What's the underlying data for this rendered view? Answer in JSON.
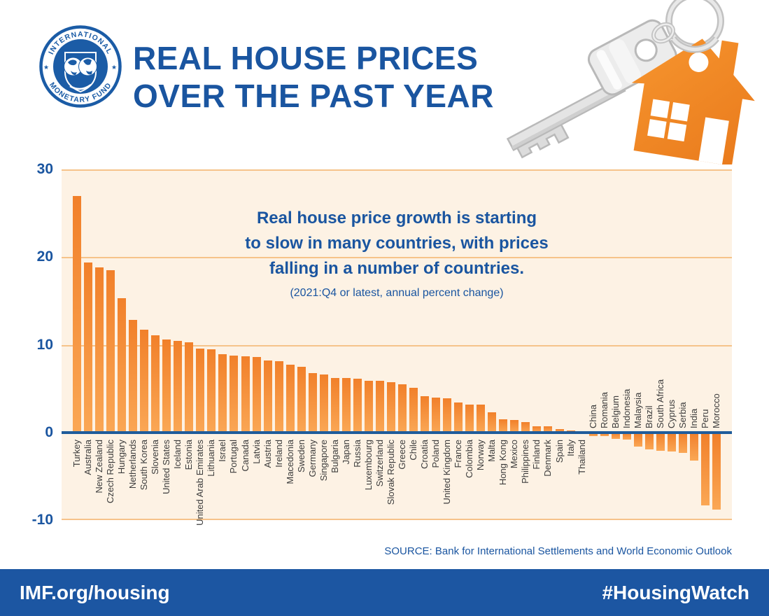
{
  "header": {
    "title_line1": "REAL HOUSE PRICES",
    "title_line2": "OVER THE PAST YEAR",
    "logo_top": "INTERNATIONAL",
    "logo_bottom": "MONETARY FUND"
  },
  "chart_data": {
    "type": "bar",
    "title_lines": [
      "Real house price growth is starting",
      "to slow in many countries, with prices",
      "falling in a number of countries."
    ],
    "subtitle": "(2021:Q4 or latest, annual percent change)",
    "xlabel": "",
    "ylabel": "",
    "ylim": [
      -10,
      30
    ],
    "yticks": [
      30,
      20,
      10,
      0,
      -10
    ],
    "grid": true,
    "legend": "none",
    "categories": [
      "Turkey",
      "Australia",
      "New Zealand",
      "Czech Republic",
      "Hungary",
      "Netherlands",
      "South Korea",
      "Slovenia",
      "United States",
      "Iceland",
      "Estonia",
      "United Arab Emirates",
      "Lithuania",
      "Israel",
      "Portugal",
      "Canada",
      "Latvia",
      "Austria",
      "Ireland",
      "Macedonia",
      "Sweden",
      "Germany",
      "Singapore",
      "Bulgaria",
      "Japan",
      "Russia",
      "Luxembourg",
      "Switzerland",
      "Slovak Republic",
      "Greece",
      "Chile",
      "Croatia",
      "Poland",
      "United Kingdom",
      "France",
      "Colombia",
      "Norway",
      "Malta",
      "Hong Kong",
      "Mexico",
      "Philippines",
      "Finland",
      "Denmark",
      "Spain",
      "Italy",
      "Thailand",
      "China",
      "Romania",
      "Belgium",
      "Indonesia",
      "Malaysia",
      "Brazil",
      "South Africa",
      "Cyprus",
      "Serbia",
      "India",
      "Peru",
      "Morocco"
    ],
    "values": [
      27.0,
      19.4,
      18.8,
      18.5,
      15.3,
      12.8,
      11.7,
      11.1,
      10.6,
      10.4,
      10.3,
      9.6,
      9.5,
      8.9,
      8.8,
      8.7,
      8.6,
      8.2,
      8.1,
      7.7,
      7.5,
      6.8,
      6.6,
      6.2,
      6.2,
      6.1,
      5.9,
      5.9,
      5.7,
      5.5,
      5.1,
      4.1,
      4.0,
      3.9,
      3.4,
      3.2,
      3.2,
      2.3,
      1.5,
      1.4,
      1.2,
      0.7,
      0.7,
      0.4,
      0.2,
      0.1,
      -0.4,
      -0.4,
      -0.7,
      -0.8,
      -1.6,
      -1.9,
      -2.1,
      -2.2,
      -2.3,
      -3.2,
      -8.3,
      -8.8
    ],
    "bar_color_top": "#F1802A",
    "bar_color_bottom": "#FAA755"
  },
  "source": "SOURCE: Bank for International Settlements and World Economic Outlook",
  "footer": {
    "left": "IMF.org/housing",
    "right": "#HousingWatch"
  },
  "colors": {
    "accent_blue": "#1A55A0",
    "axis_blue": "#1F5C9B",
    "panel_cream": "#FDF2E4",
    "gridline_orange": "#F6C38A",
    "house_orange": "#EF7F22",
    "footer_blue": "#1C56A2"
  }
}
